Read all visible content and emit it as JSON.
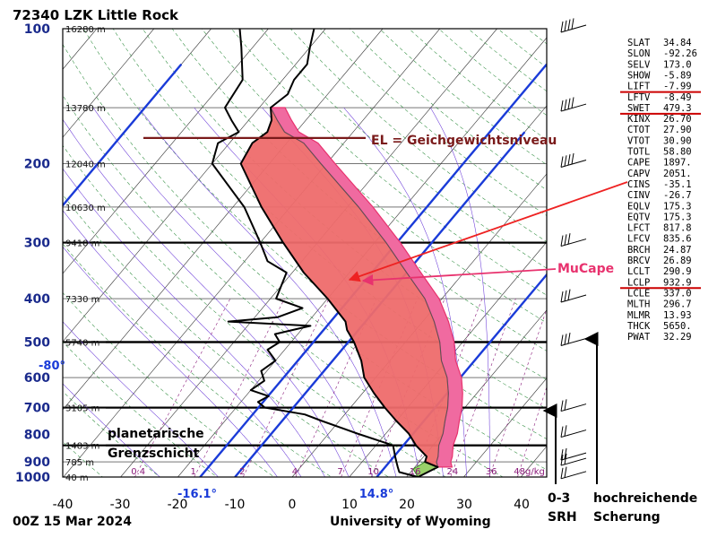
{
  "chart_data": {
    "type": "skew-t log-p diagram",
    "title": "72340 LZK Little Rock",
    "datetime": "00Z 15 Mar 2024",
    "source": "University of Wyoming",
    "pressure_levels": [
      "100",
      "200",
      "300",
      "400",
      "500",
      "600",
      "700",
      "800",
      "900",
      "1000"
    ],
    "height_labels": [
      {
        "p": 100,
        "label": "16280 m"
      },
      {
        "p": 150,
        "label": "13780 m"
      },
      {
        "p": 200,
        "label": "12040 m"
      },
      {
        "p": 250,
        "label": "10630 m"
      },
      {
        "p": 300,
        "label": "9410 m"
      },
      {
        "p": 400,
        "label": "7330 m"
      },
      {
        "p": 500,
        "label": "5740 m"
      },
      {
        "p": 700,
        "label": "3105 m"
      },
      {
        "p": 850,
        "label": "1483 m"
      },
      {
        "p": 925,
        "label": "785 m"
      },
      {
        "p": 1000,
        "label": "40 m"
      }
    ],
    "x_ticks": [
      "-40",
      "-30",
      "-20",
      "-10",
      "0",
      "10",
      "20",
      "30",
      "40"
    ],
    "xlim": [
      -40,
      45
    ],
    "mixing_ratio_labels": [
      "0.4",
      "1",
      "2",
      "4",
      "7",
      "10",
      "16",
      "24",
      "36",
      "48g/kg"
    ],
    "temperature_profile": [
      [
        1000,
        22
      ],
      [
        950,
        24
      ],
      [
        925,
        21
      ],
      [
        900,
        20.5
      ],
      [
        850,
        17
      ],
      [
        800,
        14
      ],
      [
        750,
        10
      ],
      [
        700,
        6
      ],
      [
        650,
        2
      ],
      [
        600,
        -2
      ],
      [
        550,
        -5
      ],
      [
        500,
        -9
      ],
      [
        470,
        -12
      ],
      [
        450,
        -13.5
      ],
      [
        400,
        -20
      ],
      [
        350,
        -28
      ],
      [
        300,
        -36
      ],
      [
        250,
        -45
      ],
      [
        200,
        -55
      ],
      [
        180,
        -56
      ],
      [
        170,
        -55
      ],
      [
        160,
        -56
      ],
      [
        150,
        -58
      ],
      [
        140,
        -57
      ],
      [
        130,
        -58
      ],
      [
        120,
        -58
      ],
      [
        110,
        -60
      ],
      [
        100,
        -62
      ]
    ],
    "dewpoint_profile": [
      [
        1000,
        22
      ],
      [
        975,
        18
      ],
      [
        950,
        17
      ],
      [
        925,
        16
      ],
      [
        900,
        15
      ],
      [
        850,
        13
      ],
      [
        800,
        5
      ],
      [
        750,
        -3
      ],
      [
        725,
        -7
      ],
      [
        700,
        -15
      ],
      [
        680,
        -17
      ],
      [
        660,
        -16
      ],
      [
        640,
        -20
      ],
      [
        610,
        -19
      ],
      [
        580,
        -21
      ],
      [
        550,
        -20
      ],
      [
        520,
        -23
      ],
      [
        500,
        -22
      ],
      [
        480,
        -24
      ],
      [
        460,
        -19
      ],
      [
        450,
        -34
      ],
      [
        440,
        -26
      ],
      [
        420,
        -23
      ],
      [
        400,
        -29
      ],
      [
        350,
        -31
      ],
      [
        330,
        -36
      ],
      [
        300,
        -40
      ],
      [
        250,
        -48
      ],
      [
        200,
        -60
      ],
      [
        180,
        -62
      ],
      [
        170,
        -60
      ],
      [
        160,
        -63
      ],
      [
        150,
        -66
      ],
      [
        130,
        -67
      ],
      [
        110,
        -72
      ],
      [
        100,
        -75
      ]
    ],
    "parcel_profile": [
      [
        950,
        24
      ],
      [
        925,
        23
      ],
      [
        900,
        22.5
      ],
      [
        850,
        21
      ],
      [
        800,
        20
      ],
      [
        750,
        18.5
      ],
      [
        700,
        17
      ],
      [
        650,
        15
      ],
      [
        600,
        12.5
      ],
      [
        550,
        9
      ],
      [
        500,
        6
      ],
      [
        450,
        2
      ],
      [
        400,
        -3
      ],
      [
        350,
        -10
      ],
      [
        300,
        -18
      ],
      [
        250,
        -28
      ],
      [
        200,
        -41
      ],
      [
        180,
        -47
      ],
      [
        170,
        -52
      ],
      [
        160,
        -55
      ],
      [
        150,
        -58
      ]
    ],
    "isotherm_values": [
      "-80°",
      "-16.1°",
      "14.8°"
    ],
    "annotations": {
      "el": "EL = Geichgewichtsniveau",
      "mucape": "MuCape",
      "pbl": [
        "planetarische",
        "Grenzschicht"
      ],
      "srh": [
        "0-3",
        "SRH"
      ],
      "shear": [
        "hochreichende",
        "Scherung"
      ]
    },
    "indices": [
      {
        "name": "SLAT",
        "value": "34.84"
      },
      {
        "name": "SLON",
        "value": "-92.26"
      },
      {
        "name": "SELV",
        "value": "173.0"
      },
      {
        "name": "SHOW",
        "value": "-5.89"
      },
      {
        "name": "LIFT",
        "value": "-7.99",
        "highlight": true
      },
      {
        "name": "LFTV",
        "value": "-8.49"
      },
      {
        "name": "SWET",
        "value": "479.3",
        "highlight": true
      },
      {
        "name": "KINX",
        "value": "26.70"
      },
      {
        "name": "CTOT",
        "value": "27.90"
      },
      {
        "name": "VTOT",
        "value": "30.90"
      },
      {
        "name": "TOTL",
        "value": "58.80"
      },
      {
        "name": "CAPE",
        "value": "1897."
      },
      {
        "name": "CAPV",
        "value": "2051."
      },
      {
        "name": "CINS",
        "value": "-35.1"
      },
      {
        "name": "CINV",
        "value": "-26.7"
      },
      {
        "name": "EQLV",
        "value": "175.3"
      },
      {
        "name": "EQTV",
        "value": "175.3"
      },
      {
        "name": "LFCT",
        "value": "817.8"
      },
      {
        "name": "LFCV",
        "value": "835.6"
      },
      {
        "name": "BRCH",
        "value": "24.87"
      },
      {
        "name": "BRCV",
        "value": "26.89"
      },
      {
        "name": "LCLT",
        "value": "290.9"
      },
      {
        "name": "LCLP",
        "value": "932.9",
        "highlight": true
      },
      {
        "name": "LCLE",
        "value": "337.0"
      },
      {
        "name": "MLTH",
        "value": "296.7"
      },
      {
        "name": "MLMR",
        "value": "13.93"
      },
      {
        "name": "THCK",
        "value": "5650."
      },
      {
        "name": "PWAT",
        "value": "32.29"
      }
    ],
    "wind_barb_pressures": [
      100,
      150,
      200,
      300,
      400,
      500,
      700,
      800,
      900,
      925,
      1000
    ],
    "colors": {
      "background": "#ffffff",
      "temperature": "#000000",
      "cape_fill": "#ee6b6b",
      "cape_outline": "#e8326e",
      "isotherm_highlight": "#1a3bd8",
      "el_line": "#7a1a1a",
      "annotation_red": "#ee2222",
      "annotation_pink": "#e8326e"
    }
  }
}
